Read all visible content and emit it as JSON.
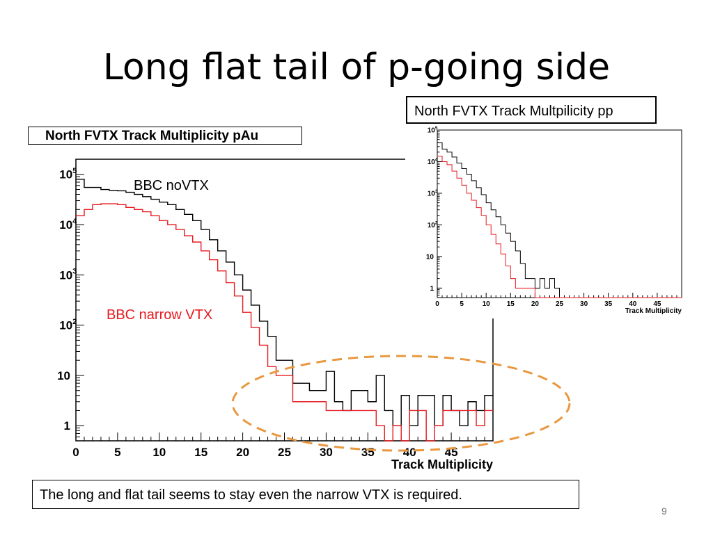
{
  "slide": {
    "title": "Long flat tail of p-going side",
    "note": "The long and flat tail seems to stay even the narrow VTX is required.",
    "page_number": "9"
  },
  "colors": {
    "series_black": "#000000",
    "series_red": "#e8191e",
    "ellipse": "#e9983f"
  },
  "chart_data": [
    {
      "type": "line",
      "title": "North FVTX Track Multiplicity pAu",
      "xlabel": "Track Multiplicity",
      "ylabel": "",
      "xlim": [
        0,
        50
      ],
      "ylim": [
        0.5,
        200000
      ],
      "yscale": "log",
      "xticks": [
        "0",
        "5",
        "10",
        "15",
        "20",
        "25",
        "30",
        "35",
        "40",
        "45"
      ],
      "yticks": [
        "1",
        "10",
        "10^2",
        "10^3",
        "10^4",
        "10^5"
      ],
      "x": [
        0,
        1,
        2,
        3,
        4,
        5,
        6,
        7,
        8,
        9,
        10,
        11,
        12,
        13,
        14,
        15,
        16,
        17,
        18,
        19,
        20,
        21,
        22,
        23,
        24,
        25,
        26,
        27,
        28,
        29,
        30,
        31,
        32,
        33,
        34,
        35,
        36,
        37,
        38,
        39,
        40,
        41,
        42,
        43,
        44,
        45,
        46,
        47,
        48,
        49
      ],
      "series": [
        {
          "name": "BBC noVTX",
          "values": [
            80000,
            55000,
            55000,
            50000,
            48000,
            47000,
            44000,
            40000,
            36000,
            32000,
            28000,
            25000,
            20000,
            16000,
            12000,
            8000,
            5000,
            3000,
            1800,
            1000,
            500,
            250,
            120,
            60,
            20,
            20,
            7,
            7,
            5,
            5,
            12,
            3,
            2,
            5,
            5,
            3,
            10,
            2,
            1,
            4,
            1,
            4,
            4,
            1,
            4,
            2,
            1,
            3,
            2,
            4
          ],
          "color_key": "series_black"
        },
        {
          "name": "BBC narrow VTX",
          "values": [
            15000,
            20000,
            25000,
            26000,
            26000,
            25000,
            22000,
            20000,
            18000,
            15000,
            12000,
            10000,
            8000,
            6000,
            4500,
            3000,
            2000,
            1200,
            700,
            380,
            180,
            90,
            40,
            15,
            10,
            10,
            3,
            3,
            3,
            3,
            2,
            2,
            2,
            2,
            2,
            2,
            1,
            0,
            1,
            0,
            2,
            2,
            0,
            1,
            2,
            2,
            2,
            2,
            1,
            2
          ],
          "color_key": "series_red"
        }
      ]
    },
    {
      "type": "line",
      "title": "North FVTX Track Multpilicity pp",
      "xlabel": "Track Multiplicity",
      "xlim": [
        0,
        50
      ],
      "ylim": [
        0.5,
        100000
      ],
      "yscale": "log",
      "xticks": [
        "0",
        "5",
        "10",
        "15",
        "20",
        "25",
        "30",
        "35",
        "40",
        "45"
      ],
      "yticks": [
        "1",
        "10",
        "10^2",
        "10^3",
        "10^4",
        "10^5"
      ],
      "x": [
        0,
        1,
        2,
        3,
        4,
        5,
        6,
        7,
        8,
        9,
        10,
        11,
        12,
        13,
        14,
        15,
        16,
        17,
        18,
        19,
        20,
        21,
        22,
        23,
        24,
        25,
        26,
        27,
        28,
        29,
        30,
        31,
        32,
        33,
        34,
        35,
        36,
        37,
        38,
        39,
        40,
        41,
        42,
        43,
        44,
        45,
        46,
        47,
        48,
        49
      ],
      "series": [
        {
          "name": "",
          "values": [
            40000,
            25000,
            20000,
            14000,
            9000,
            6000,
            4000,
            2500,
            1500,
            900,
            500,
            300,
            180,
            100,
            55,
            30,
            15,
            6,
            2,
            2,
            1,
            2,
            1,
            2,
            1,
            0,
            0,
            0,
            0,
            0,
            0,
            0,
            0,
            0,
            0,
            0,
            0,
            0,
            0,
            0,
            0,
            0,
            0,
            0,
            0,
            0,
            0,
            0,
            0,
            0
          ],
          "color_key": "series_black"
        },
        {
          "name": "",
          "values": [
            15000,
            10000,
            8000,
            5000,
            3000,
            1800,
            1000,
            600,
            350,
            200,
            100,
            50,
            25,
            12,
            5,
            2,
            1,
            1,
            1,
            1,
            0,
            0,
            0,
            0,
            0,
            0,
            0,
            0,
            0,
            0,
            0,
            0,
            0,
            0,
            0,
            0,
            0,
            0,
            0,
            0,
            0,
            0,
            0,
            0,
            0,
            0,
            0,
            0,
            0,
            0
          ],
          "color_key": "series_red"
        }
      ]
    }
  ]
}
